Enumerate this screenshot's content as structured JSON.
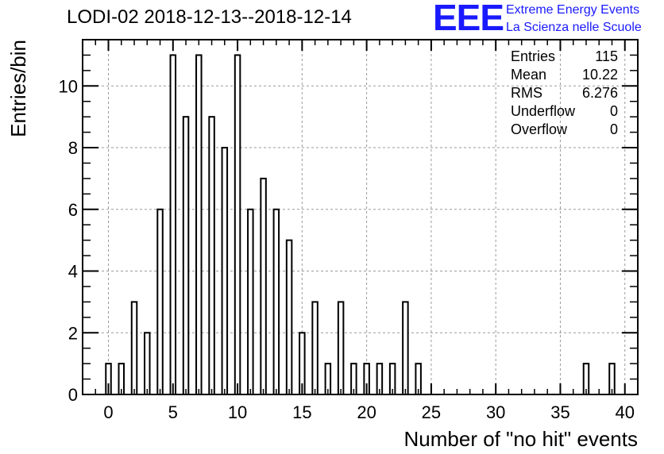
{
  "title": "LODI-02 2018-12-13--2018-12-14",
  "logo": {
    "letters": "EEE",
    "line1": "Extreme Energy Events",
    "line2": "La Scienza nelle Scuole",
    "color": "#1a1aff"
  },
  "stats": [
    {
      "label": "Entries",
      "value": "115"
    },
    {
      "label": "Mean",
      "value": "10.22"
    },
    {
      "label": "RMS",
      "value": "6.276"
    },
    {
      "label": "Underflow",
      "value": "0"
    },
    {
      "label": "Overflow",
      "value": "0"
    }
  ],
  "chart_data": {
    "type": "bar",
    "title": "LODI-02 2018-12-13--2018-12-14",
    "xlabel": "Number of \"no hit\" events",
    "ylabel": "Entries/bin",
    "xlim": [
      -2,
      41
    ],
    "ylim": [
      0,
      11.5
    ],
    "x_ticks": [
      0,
      5,
      10,
      15,
      20,
      25,
      30,
      35,
      40
    ],
    "y_ticks": [
      0,
      2,
      4,
      6,
      8,
      10
    ],
    "grid": true,
    "bin_width": 1,
    "x": [
      0,
      1,
      2,
      3,
      4,
      5,
      6,
      7,
      8,
      9,
      10,
      11,
      12,
      13,
      14,
      15,
      16,
      17,
      18,
      19,
      20,
      21,
      22,
      23,
      24,
      37,
      39
    ],
    "values": [
      1,
      1,
      3,
      2,
      6,
      11,
      9,
      11,
      9,
      8,
      11,
      6,
      7,
      6,
      5,
      2,
      3,
      1,
      3,
      1,
      1,
      1,
      1,
      3,
      1,
      1,
      1
    ]
  }
}
